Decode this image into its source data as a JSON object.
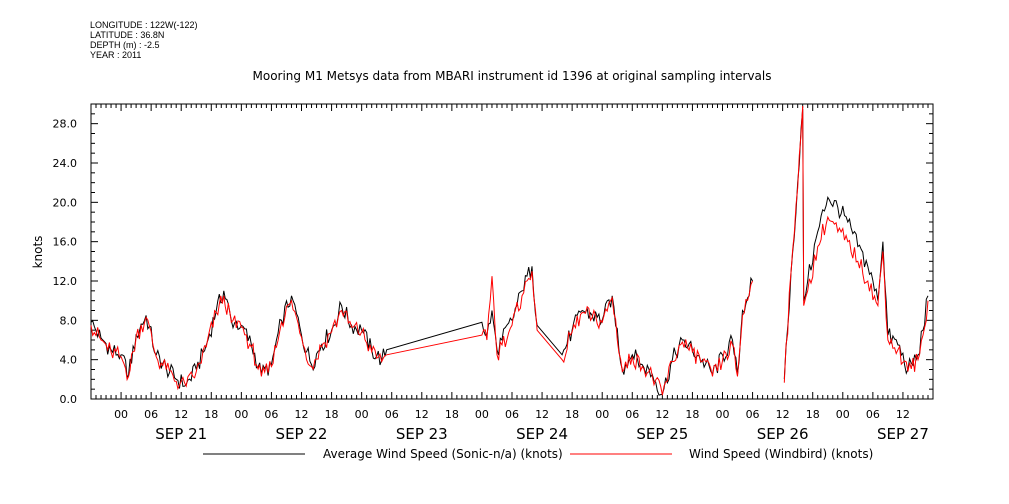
{
  "header": {
    "longitude": "LONGITUDE : 122W(-122)",
    "latitude": "LATITUDE : 36.8N",
    "depth": "DEPTH (m) : -2.5",
    "year": "YEAR : 2011"
  },
  "chart_data": {
    "type": "line",
    "title": "Mooring M1 Metsys data from MBARI instrument id 1396 at original sampling intervals",
    "ylabel": "knots",
    "xlabel": "",
    "ylim": [
      0,
      30
    ],
    "yticks": [
      "0.0",
      "4.0",
      "8.0",
      "12.0",
      "16.0",
      "20.0",
      "24.0",
      "28.0"
    ],
    "xlim_hours": [
      -6,
      162
    ],
    "hour_tick_labels": [
      "00",
      "06",
      "12",
      "18",
      "00",
      "06",
      "12",
      "18",
      "00",
      "06",
      "12",
      "18",
      "00",
      "06",
      "12",
      "18",
      "00",
      "06",
      "12",
      "18",
      "00",
      "06",
      "12",
      "18",
      "00",
      "06",
      "12"
    ],
    "day_labels": [
      "SEP 21",
      "SEP 22",
      "SEP 23",
      "SEP 24",
      "SEP 25",
      "SEP 26",
      "SEP 27"
    ],
    "grid": false,
    "legend_position": "bottom",
    "series": [
      {
        "name": "Average Wind Speed (Sonic-n/a) (knots)",
        "color": "#000000",
        "anchors": [
          [
            -6,
            7.8
          ],
          [
            -4,
            6.2
          ],
          [
            -2,
            5.0
          ],
          [
            0,
            4.5
          ],
          [
            1.5,
            2.5
          ],
          [
            3,
            6.5
          ],
          [
            5,
            8.5
          ],
          [
            7,
            4.5
          ],
          [
            9,
            3.2
          ],
          [
            11,
            2.0
          ],
          [
            13,
            1.5
          ],
          [
            15,
            3.0
          ],
          [
            17,
            5.5
          ],
          [
            19,
            9.0
          ],
          [
            20.5,
            11.0
          ],
          [
            22,
            8.0
          ],
          [
            24,
            7.5
          ],
          [
            26,
            5.5
          ],
          [
            28,
            2.5
          ],
          [
            30,
            3.5
          ],
          [
            32,
            8.0
          ],
          [
            34,
            10.5
          ],
          [
            36,
            6.5
          ],
          [
            38,
            3.5
          ],
          [
            40,
            5.5
          ],
          [
            42,
            7.0
          ],
          [
            44,
            9.5
          ],
          [
            46,
            7.5
          ],
          [
            48,
            7.0
          ],
          [
            50,
            5.0
          ],
          [
            52,
            4.0
          ],
          [
            53,
            5.0
          ],
          [
            72,
            7.8
          ],
          [
            73,
            6.5
          ],
          [
            74,
            9.0
          ],
          [
            75,
            5.0
          ],
          [
            76,
            6.0
          ],
          [
            78,
            8.0
          ],
          [
            80,
            11.0
          ],
          [
            82,
            13.5
          ],
          [
            83,
            7.5
          ],
          [
            88,
            4.5
          ],
          [
            90,
            7.0
          ],
          [
            92,
            9.0
          ],
          [
            94,
            8.5
          ],
          [
            96,
            8.0
          ],
          [
            98,
            10.5
          ],
          [
            100,
            3.0
          ],
          [
            102,
            4.5
          ],
          [
            104,
            3.5
          ],
          [
            106,
            2.5
          ],
          [
            108,
            0.5
          ],
          [
            110,
            4.0
          ],
          [
            112,
            6.0
          ],
          [
            114,
            5.0
          ],
          [
            116,
            4.0
          ],
          [
            118,
            2.5
          ],
          [
            122,
            6.0
          ],
          [
            123,
            2.5
          ],
          [
            124,
            9.0
          ],
          [
            126,
            12.0
          ],
          [
            132,
            0
          ],
          [
            136,
            29.5
          ],
          [
            136.2,
            10.0
          ],
          [
            137,
            12.0
          ],
          [
            139,
            17.0
          ],
          [
            141,
            20.5
          ],
          [
            143,
            19.5
          ],
          [
            145,
            18.0
          ],
          [
            147,
            15.5
          ],
          [
            149,
            13.5
          ],
          [
            151,
            10.0
          ],
          [
            152,
            16.0
          ],
          [
            153,
            6.5
          ],
          [
            155,
            5.5
          ],
          [
            157,
            3.0
          ],
          [
            159,
            4.5
          ],
          [
            160,
            7.0
          ],
          [
            161,
            10.5
          ]
        ]
      },
      {
        "name": "Wind Speed (Windbird) (knots)",
        "color": "#ff0000",
        "anchors": [
          [
            -6,
            7.5
          ],
          [
            -4,
            6.0
          ],
          [
            -2,
            4.8
          ],
          [
            0,
            4.3
          ],
          [
            1.5,
            2.3
          ],
          [
            3,
            6.3
          ],
          [
            5,
            8.3
          ],
          [
            7,
            4.3
          ],
          [
            9,
            3.0
          ],
          [
            11,
            1.8
          ],
          [
            13,
            1.3
          ],
          [
            15,
            2.8
          ],
          [
            17,
            5.3
          ],
          [
            19,
            8.8
          ],
          [
            20.5,
            10.5
          ],
          [
            22,
            7.8
          ],
          [
            24,
            7.3
          ],
          [
            26,
            5.3
          ],
          [
            28,
            2.3
          ],
          [
            30,
            3.3
          ],
          [
            32,
            7.8
          ],
          [
            34,
            10.0
          ],
          [
            36,
            6.3
          ],
          [
            38,
            3.3
          ],
          [
            40,
            5.3
          ],
          [
            42,
            6.8
          ],
          [
            44,
            9.0
          ],
          [
            46,
            7.3
          ],
          [
            48,
            6.8
          ],
          [
            50,
            4.8
          ],
          [
            52,
            3.8
          ],
          [
            53,
            4.5
          ],
          [
            72,
            6.5
          ],
          [
            73,
            6.0
          ],
          [
            74,
            12.5
          ],
          [
            75,
            4.5
          ],
          [
            76,
            5.5
          ],
          [
            78,
            7.5
          ],
          [
            80,
            10.5
          ],
          [
            82,
            13.0
          ],
          [
            83,
            7.0
          ],
          [
            88,
            4.0
          ],
          [
            90,
            6.8
          ],
          [
            92,
            8.8
          ],
          [
            94,
            8.3
          ],
          [
            96,
            7.8
          ],
          [
            98,
            10.3
          ],
          [
            100,
            2.8
          ],
          [
            102,
            4.3
          ],
          [
            104,
            3.3
          ],
          [
            106,
            2.3
          ],
          [
            108,
            0.4
          ],
          [
            110,
            3.8
          ],
          [
            112,
            5.8
          ],
          [
            114,
            4.8
          ],
          [
            116,
            3.8
          ],
          [
            118,
            2.3
          ],
          [
            122,
            5.5
          ],
          [
            123,
            2.3
          ],
          [
            124,
            8.5
          ],
          [
            126,
            12.0
          ],
          [
            132,
            0
          ],
          [
            136,
            29.8
          ],
          [
            136.2,
            9.5
          ],
          [
            137,
            11.0
          ],
          [
            139,
            15.5
          ],
          [
            141,
            18.5
          ],
          [
            143,
            17.0
          ],
          [
            145,
            16.0
          ],
          [
            147,
            14.0
          ],
          [
            149,
            12.0
          ],
          [
            151,
            9.5
          ],
          [
            152,
            15.0
          ],
          [
            153,
            6.0
          ],
          [
            155,
            5.0
          ],
          [
            157,
            2.8
          ],
          [
            159,
            4.0
          ],
          [
            160,
            6.5
          ],
          [
            161,
            10.0
          ]
        ]
      }
    ]
  }
}
